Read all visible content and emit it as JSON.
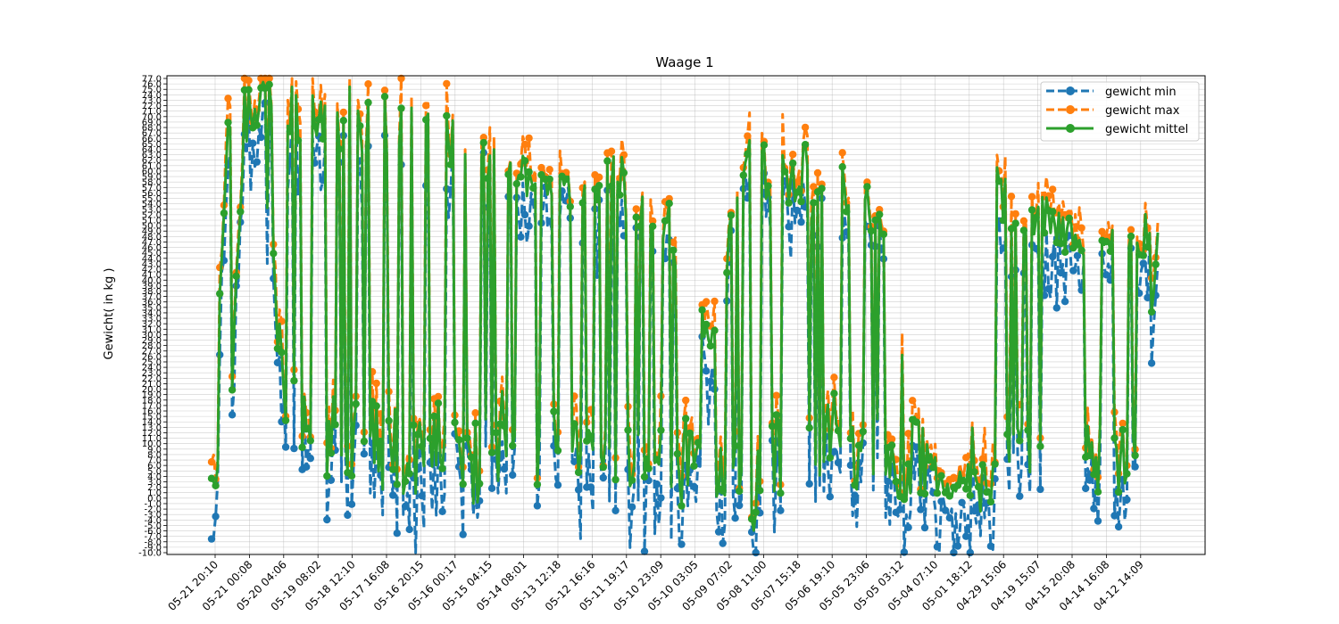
{
  "chart_data": {
    "type": "line",
    "title": "Waage 1",
    "xlabel": "",
    "ylabel": "Gewicht( in kg )",
    "ylim": [
      -10,
      77
    ],
    "grid": true,
    "legend_placement": "top-right",
    "x_ticks": [
      "05-21 20:10",
      "05-21 00:08",
      "05-20 04:06",
      "05-19 08:02",
      "05-18 12:10",
      "05-17 16:08",
      "05-16 20:15",
      "05-16 00:17",
      "05-15 04:15",
      "05-14 08:01",
      "05-13 12:18",
      "05-12 16:16",
      "05-11 19:17",
      "05-10 23:09",
      "05-10 03:05",
      "05-09 07:02",
      "05-08 11:00",
      "05-07 15:18",
      "05-06 19:10",
      "05-05 23:06",
      "05-05 03:12",
      "05-04 07:10",
      "05-01 18:12",
      "04-29 15:06",
      "04-19 15:07",
      "04-15 20:08",
      "04-14 16:08",
      "04-12 14:09"
    ],
    "y_ticks": [
      77.0,
      76.0,
      75.0,
      74.0,
      73.0,
      72.0,
      71.0,
      70.0,
      69.0,
      68.0,
      67.0,
      66.0,
      65.0,
      64.0,
      63.0,
      62.0,
      61.0,
      60.0,
      59.0,
      58.0,
      57.0,
      56.0,
      55.0,
      54.0,
      53.0,
      52.0,
      51.0,
      50.0,
      49.0,
      48.0,
      47.0,
      46.0,
      45.0,
      44.0,
      43.0,
      42.0,
      41.0,
      40.0,
      39.0,
      38.0,
      37.0,
      36.0,
      35.0,
      34.0,
      33.0,
      32.0,
      31.0,
      30.0,
      29.0,
      28.0,
      27.0,
      26.0,
      25.0,
      24.0,
      23.0,
      22.0,
      21.0,
      20.0,
      19.0,
      18.0,
      17.0,
      16.0,
      15.0,
      14.0,
      13.0,
      12.0,
      11.0,
      10.0,
      9.0,
      8.0,
      7.0,
      6.0,
      5.0,
      4.0,
      3.0,
      2.0,
      1.0,
      0.0,
      -1.0,
      -2.0,
      -3.0,
      -4.0,
      -5.0,
      -6.0,
      -7.0,
      -8.0,
      -9.0,
      -10.0
    ],
    "series": [
      {
        "name": "gewicht min",
        "color": "#1f77b4",
        "dashed": true
      },
      {
        "name": "gewicht max",
        "color": "#ff7f0e",
        "dashed": true
      },
      {
        "name": "gewicht mittel",
        "color": "#2ca02c",
        "dashed": false
      }
    ],
    "envelope": [
      {
        "x": 0,
        "lo": -1,
        "hi": 0
      },
      {
        "x": 1,
        "lo": 2,
        "hi": 70
      },
      {
        "x": 2,
        "lo": 60,
        "hi": 75
      },
      {
        "x": 3,
        "lo": 70,
        "hi": 76
      },
      {
        "x": 4,
        "lo": 30,
        "hi": 76
      },
      {
        "x": 5,
        "lo": 1,
        "hi": 75
      },
      {
        "x": 6,
        "lo": 2,
        "hi": 74
      },
      {
        "x": 7,
        "lo": 1,
        "hi": 74
      },
      {
        "x": 8,
        "lo": 5,
        "hi": 73
      },
      {
        "x": 9,
        "lo": 0,
        "hi": 73
      },
      {
        "x": 10,
        "lo": 3,
        "hi": 73
      },
      {
        "x": 11,
        "lo": 1,
        "hi": 72
      },
      {
        "x": 12,
        "lo": -2,
        "hi": 72
      },
      {
        "x": 13,
        "lo": 0,
        "hi": 71
      },
      {
        "x": 14,
        "lo": 1,
        "hi": 70
      },
      {
        "x": 15,
        "lo": 0,
        "hi": 68
      },
      {
        "x": 16,
        "lo": -5,
        "hi": 68
      },
      {
        "x": 17,
        "lo": 1,
        "hi": 67
      },
      {
        "x": 18,
        "lo": 0,
        "hi": 66
      },
      {
        "x": 19,
        "lo": 2,
        "hi": 65
      },
      {
        "x": 20,
        "lo": 0,
        "hi": 63
      },
      {
        "x": 21,
        "lo": 0,
        "hi": 62
      },
      {
        "x": 22,
        "lo": 0,
        "hi": 61
      },
      {
        "x": 23,
        "lo": 1,
        "hi": 60
      },
      {
        "x": 24,
        "lo": -1,
        "hi": 61
      },
      {
        "x": 25,
        "lo": 0,
        "hi": 60
      },
      {
        "x": 26,
        "lo": 0,
        "hi": 59
      },
      {
        "x": 27,
        "lo": 0,
        "hi": 57
      },
      {
        "x": 28,
        "lo": 1,
        "hi": 55
      },
      {
        "x": 29,
        "lo": 0,
        "hi": 52
      },
      {
        "x": 30,
        "lo": 2,
        "hi": 48
      },
      {
        "x": 31,
        "lo": 0,
        "hi": 28
      },
      {
        "x": 32,
        "lo": -1,
        "hi": 44
      },
      {
        "x": 33,
        "lo": -1,
        "hi": 65
      },
      {
        "x": 34,
        "lo": -10,
        "hi": 67
      },
      {
        "x": 35,
        "lo": 1,
        "hi": 63
      },
      {
        "x": 36,
        "lo": 0,
        "hi": 62
      },
      {
        "x": 37,
        "lo": 0,
        "hi": 61
      },
      {
        "x": 38,
        "lo": 1,
        "hi": 61
      },
      {
        "x": 39,
        "lo": 0,
        "hi": 60
      },
      {
        "x": 40,
        "lo": 1,
        "hi": 59
      },
      {
        "x": 41,
        "lo": 2,
        "hi": 57
      },
      {
        "x": 42,
        "lo": 0,
        "hi": 52
      },
      {
        "x": 43,
        "lo": -1,
        "hi": 28
      },
      {
        "x": 44,
        "lo": -1,
        "hi": 14
      },
      {
        "x": 45,
        "lo": -1,
        "hi": 5
      },
      {
        "x": 46,
        "lo": -1,
        "hi": 0
      },
      {
        "x": 47,
        "lo": -1,
        "hi": 2
      },
      {
        "x": 48,
        "lo": -1,
        "hi": 30
      },
      {
        "x": 49,
        "lo": 0,
        "hi": 59
      },
      {
        "x": 50,
        "lo": -1,
        "hi": 54
      },
      {
        "x": 51,
        "lo": 0,
        "hi": 52
      },
      {
        "x": 52,
        "lo": -2,
        "hi": 55
      },
      {
        "x": 53,
        "lo": 0,
        "hi": 53
      },
      {
        "x": 54,
        "lo": -1,
        "hi": 51
      },
      {
        "x": 55,
        "lo": 0,
        "hi": 52
      },
      {
        "x": 56,
        "lo": -1,
        "hi": 51
      },
      {
        "x": 57,
        "lo": 1,
        "hi": 51
      },
      {
        "x": 58,
        "lo": 5,
        "hi": 50
      },
      {
        "x": 59,
        "lo": 46,
        "hi": 50
      }
    ]
  }
}
